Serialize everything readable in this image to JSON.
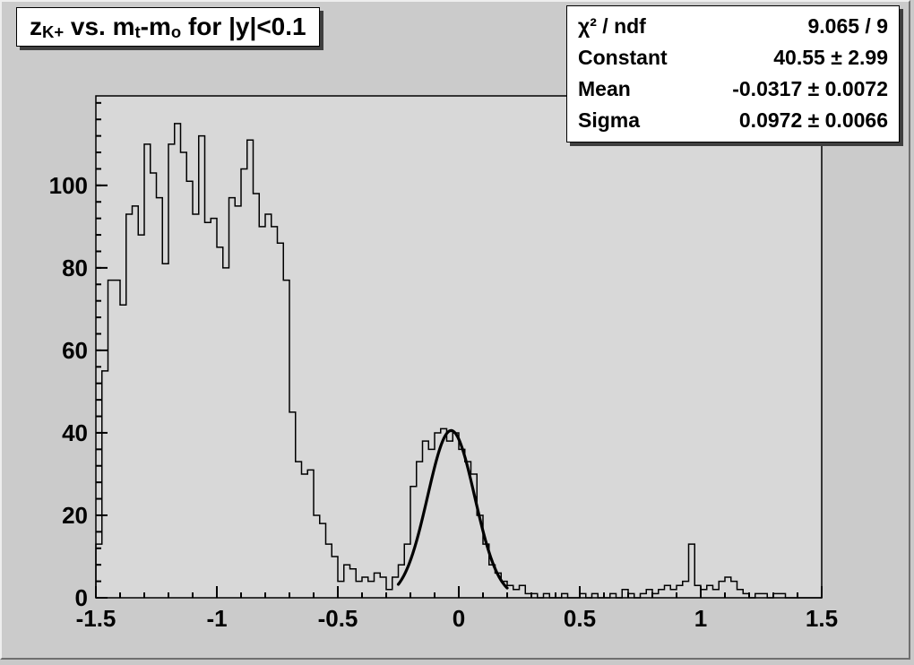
{
  "title": {
    "full": "z_K+ vs. m_t-m_o for |y|<0.1",
    "parts": [
      {
        "text": "z",
        "sub": false
      },
      {
        "text": "K+",
        "sub": true
      },
      {
        "text": " vs. m",
        "sub": false
      },
      {
        "text": "t",
        "sub": true
      },
      {
        "text": "-m",
        "sub": false
      },
      {
        "text": "o",
        "sub": true
      },
      {
        "text": " for |y|<0.1",
        "sub": false
      }
    ]
  },
  "stats": {
    "rows": [
      {
        "label": "χ² / ndf",
        "value": "9.065 / 9"
      },
      {
        "label": "Constant",
        "value": "40.55 ± 2.99"
      },
      {
        "label": "Mean",
        "value": "-0.0317 ± 0.0072"
      },
      {
        "label": "Sigma",
        "value": "0.0972 ± 0.0066"
      }
    ]
  },
  "chart_data": {
    "type": "bar",
    "subtype": "histogram-steps",
    "title": "z_K+ vs. m_t-m_o for |y|<0.1",
    "xlabel": "",
    "ylabel": "",
    "xlim": [
      -1.5,
      1.5
    ],
    "ylim": [
      0,
      121.7
    ],
    "bin_start": -1.5,
    "bin_width": 0.025,
    "counts": [
      13,
      55,
      77,
      77,
      71,
      93,
      95,
      88,
      110,
      103,
      97,
      81,
      110,
      115,
      108,
      101,
      93,
      112,
      91,
      92,
      85,
      80,
      97,
      95,
      104,
      111,
      98,
      90,
      93,
      90,
      86,
      77,
      45,
      33,
      30,
      31,
      20,
      18,
      13,
      10,
      4,
      8,
      7,
      4,
      5,
      4,
      6,
      5,
      2,
      5,
      8,
      13,
      27,
      33,
      38,
      36,
      40,
      41,
      38,
      40,
      36,
      33,
      30,
      20,
      13,
      8,
      6,
      4,
      3,
      2,
      3,
      1,
      1,
      0,
      1,
      0,
      0,
      1,
      0,
      0,
      1,
      0,
      1,
      0,
      0,
      1,
      0,
      2,
      1,
      0,
      1,
      2,
      1,
      2,
      3,
      2,
      3,
      4,
      13,
      3,
      2,
      3,
      2,
      4,
      5,
      4,
      2,
      1,
      0,
      1,
      1,
      0,
      1,
      1,
      0,
      0,
      0,
      0,
      0,
      0
    ],
    "xticks": [
      {
        "v": -1.5,
        "label": "-1.5"
      },
      {
        "v": -1.0,
        "label": "-1"
      },
      {
        "v": -0.5,
        "label": "-0.5"
      },
      {
        "v": 0.0,
        "label": "0"
      },
      {
        "v": 0.5,
        "label": "0.5"
      },
      {
        "v": 1.0,
        "label": "1"
      },
      {
        "v": 1.5,
        "label": "1.5"
      }
    ],
    "yticks": [
      {
        "v": 0,
        "label": "0"
      },
      {
        "v": 20,
        "label": "20"
      },
      {
        "v": 40,
        "label": "40"
      },
      {
        "v": 60,
        "label": "60"
      },
      {
        "v": 80,
        "label": "80"
      },
      {
        "v": 100,
        "label": "100"
      }
    ],
    "x_minor_step": 0.1,
    "y_minor_step": 4,
    "grid": false,
    "legend": "none",
    "hist_color": "#000000",
    "frame_fill": "#d8d8d8",
    "fit": {
      "type": "gaussian",
      "constant": 40.55,
      "mean": -0.0317,
      "sigma": 0.0972,
      "range": [
        -0.25,
        0.2
      ],
      "color": "#000000"
    }
  }
}
